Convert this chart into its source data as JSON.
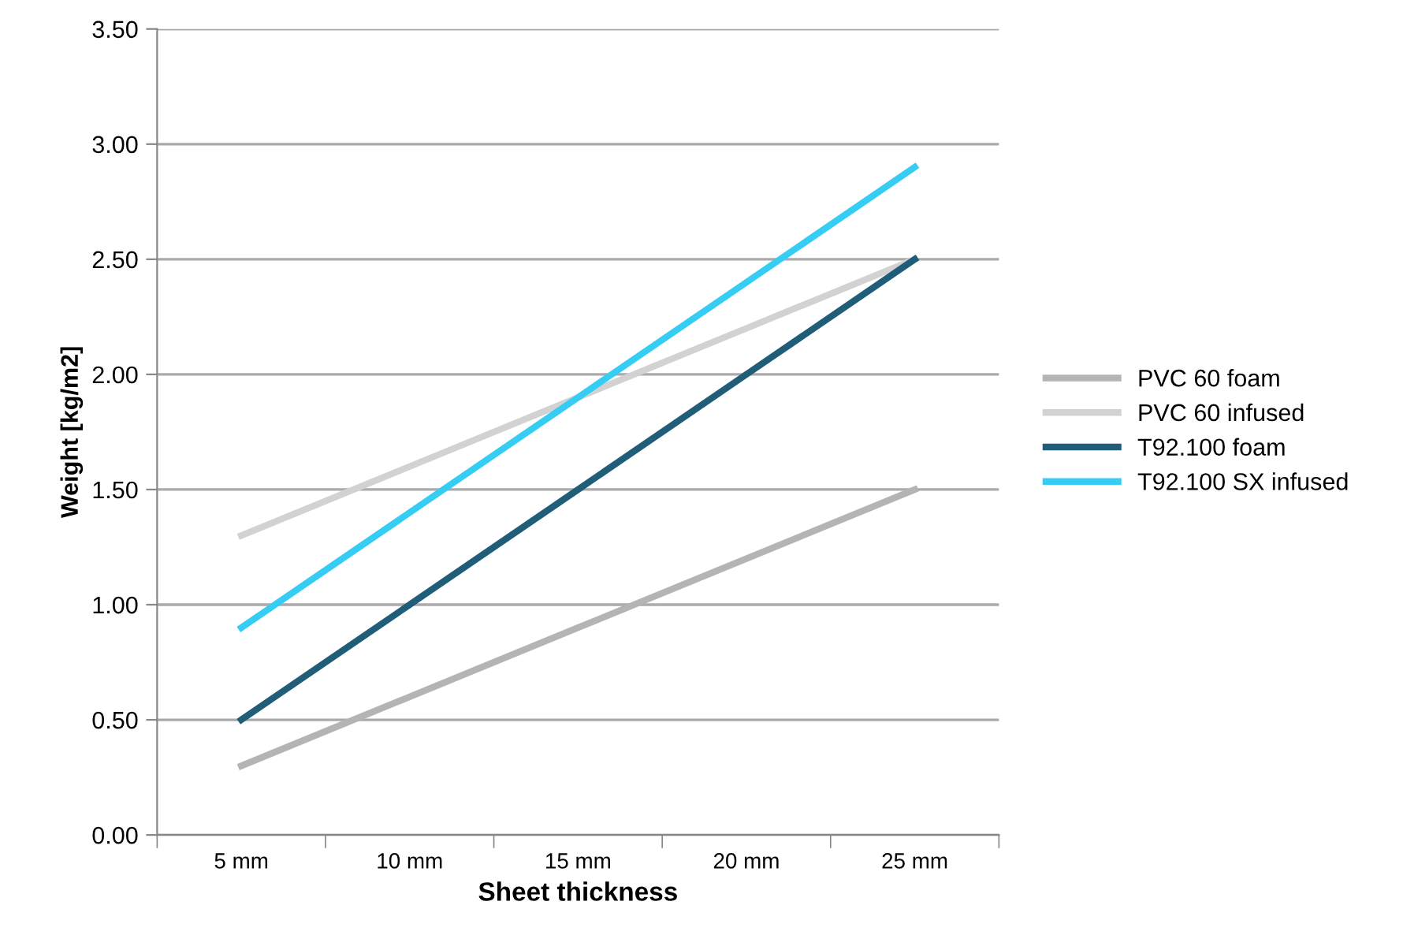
{
  "chart_data": {
    "type": "line",
    "xlabel": "Sheet thickness",
    "ylabel": "Weight [kg/m2]",
    "categories": [
      "5 mm",
      "10 mm",
      "15 mm",
      "20 mm",
      "25 mm"
    ],
    "series": [
      {
        "name": "PVC 60 foam",
        "color": "#b4b4b4",
        "values": [
          0.3,
          0.6,
          0.9,
          1.2,
          1.5
        ]
      },
      {
        "name": "PVC 60 infused",
        "color": "#d2d2d2",
        "values": [
          1.3,
          1.6,
          1.9,
          2.2,
          2.5
        ]
      },
      {
        "name": "T92.100 foam",
        "color": "#1f5d78",
        "values": [
          0.5,
          1.0,
          1.5,
          2.0,
          2.5
        ]
      },
      {
        "name": "T92.100 SX infused",
        "color": "#36cdf5",
        "values": [
          0.9,
          1.4,
          1.9,
          2.4,
          2.9
        ]
      }
    ],
    "ylim": [
      0,
      3.5
    ],
    "yticks": [
      {
        "value": 0,
        "label": "0.00"
      },
      {
        "value": 0.5,
        "label": "0.50"
      },
      {
        "value": 1,
        "label": "1.00"
      },
      {
        "value": 1.5,
        "label": "1.50"
      },
      {
        "value": 2,
        "label": "2.00"
      },
      {
        "value": 2.5,
        "label": "2.50"
      },
      {
        "value": 3,
        "label": "3.00"
      },
      {
        "value": 3.5,
        "label": "3.50"
      }
    ],
    "grid": "y",
    "legend": "right",
    "marker": "none",
    "line_style": "solid"
  }
}
